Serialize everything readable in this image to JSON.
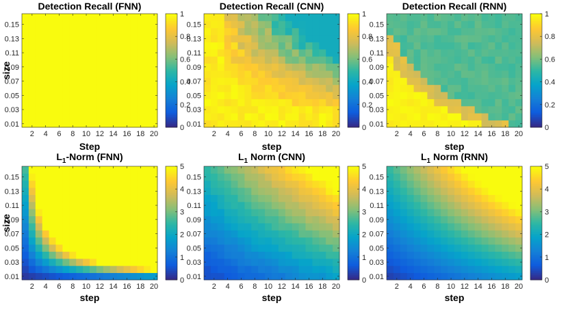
{
  "chart_data": [
    {
      "type": "heatmap",
      "title": "Detection Recall (FNN)",
      "title_main": "Detection Recall (FNN)",
      "title_sub": "",
      "title_rest": "",
      "xlabel": "Step",
      "ylabel": "size",
      "xticks": [
        "2",
        "4",
        "6",
        "8",
        "10",
        "12",
        "14",
        "16",
        "18",
        "20"
      ],
      "yticks": [
        "0.15",
        "0.13",
        "0.11",
        "0.09",
        "0.07",
        "0.05",
        "0.03",
        "0.01"
      ],
      "xlim": [
        1,
        20
      ],
      "ylim": [
        0.005,
        0.155
      ],
      "clim": [
        0,
        1
      ],
      "cbar_ticks": [
        "0",
        "0.2",
        "0.4",
        "0.6",
        "0.8",
        "1"
      ],
      "cbar_tick_values": [
        0,
        0.2,
        0.4,
        0.6,
        0.8,
        1
      ],
      "model": "fnn_recall"
    },
    {
      "type": "heatmap",
      "title": "Detection Recall (CNN)",
      "title_main": "Detection Recall (CNN)",
      "title_sub": "",
      "title_rest": "",
      "xlabel": "step",
      "ylabel": "",
      "xticks": [
        "2",
        "4",
        "6",
        "8",
        "10",
        "12",
        "14",
        "16",
        "18",
        "20"
      ],
      "yticks": [
        "0.15",
        "0.13",
        "0.11",
        "0.09",
        "0.07",
        "0.05",
        "0.03",
        "0.01"
      ],
      "xlim": [
        1,
        20
      ],
      "ylim": [
        0.005,
        0.155
      ],
      "clim": [
        0,
        1
      ],
      "cbar_ticks": [
        "0",
        "0.2",
        "0.4",
        "0.6",
        "0.8",
        "1"
      ],
      "cbar_tick_values": [
        0,
        0.2,
        0.4,
        0.6,
        0.8,
        1
      ],
      "model": "cnn_recall"
    },
    {
      "type": "heatmap",
      "title": "Detection Recall (RNN)",
      "title_main": "Detection Recall (RNN)",
      "title_sub": "",
      "title_rest": "",
      "xlabel": "step",
      "ylabel": "",
      "xticks": [
        "2",
        "4",
        "6",
        "8",
        "10",
        "12",
        "14",
        "16",
        "18",
        "20"
      ],
      "yticks": [
        "0.15",
        "0.13",
        "0.11",
        "0.09",
        "0.07",
        "0.05",
        "0.03",
        "0.01"
      ],
      "xlim": [
        1,
        20
      ],
      "ylim": [
        0.005,
        0.155
      ],
      "clim": [
        0,
        1
      ],
      "cbar_ticks": [
        "0",
        "0.2",
        "0.4",
        "0.6",
        "0.8",
        "1"
      ],
      "cbar_tick_values": [
        0,
        0.2,
        0.4,
        0.6,
        0.8,
        1
      ],
      "model": "rnn_recall"
    },
    {
      "type": "heatmap",
      "title": "L1-Norm (FNN)",
      "title_main": "L",
      "title_sub": "1",
      "title_rest": "-Norm (FNN)",
      "xlabel": "step",
      "ylabel": "size",
      "xticks": [
        "2",
        "4",
        "6",
        "8",
        "10",
        "12",
        "14",
        "16",
        "18",
        "20"
      ],
      "yticks": [
        "0.15",
        "0.13",
        "0.11",
        "0.09",
        "0.07",
        "0.05",
        "0.03",
        "0.01"
      ],
      "xlim": [
        1,
        20
      ],
      "ylim": [
        0.005,
        0.155
      ],
      "clim": [
        0,
        5
      ],
      "cbar_ticks": [
        "0",
        "1",
        "2",
        "3",
        "4",
        "5"
      ],
      "cbar_tick_values": [
        0,
        1,
        2,
        3,
        4,
        5
      ],
      "model": "fnn_l1"
    },
    {
      "type": "heatmap",
      "title": "L1 Norm (CNN)",
      "title_main": "L",
      "title_sub": "1",
      "title_rest": " Norm (CNN)",
      "xlabel": "step",
      "ylabel": "",
      "xticks": [
        "2",
        "4",
        "6",
        "8",
        "10",
        "12",
        "14",
        "16",
        "18",
        "20"
      ],
      "yticks": [
        "0.15",
        "0.13",
        "0.11",
        "0.09",
        "0.07",
        "0.05",
        "0.03",
        "0.01"
      ],
      "xlim": [
        1,
        20
      ],
      "ylim": [
        0.005,
        0.155
      ],
      "clim": [
        0,
        5
      ],
      "cbar_ticks": [
        "0",
        "1",
        "2",
        "3",
        "4",
        "5"
      ],
      "cbar_tick_values": [
        0,
        1,
        2,
        3,
        4,
        5
      ],
      "model": "cnn_l1"
    },
    {
      "type": "heatmap",
      "title": "L1 Norm (RNN)",
      "title_main": "L",
      "title_sub": "1",
      "title_rest": " Norm (RNN)",
      "xlabel": "step",
      "ylabel": "",
      "xticks": [
        "2",
        "4",
        "6",
        "8",
        "10",
        "12",
        "14",
        "16",
        "18",
        "20"
      ],
      "yticks": [
        "0.15",
        "0.13",
        "0.11",
        "0.09",
        "0.07",
        "0.05",
        "0.03",
        "0.01"
      ],
      "xlim": [
        1,
        20
      ],
      "ylim": [
        0.005,
        0.155
      ],
      "clim": [
        0,
        5
      ],
      "cbar_ticks": [
        "0",
        "1",
        "2",
        "3",
        "4",
        "5"
      ],
      "cbar_tick_values": [
        0,
        1,
        2,
        3,
        4,
        5
      ],
      "model": "rnn_l1"
    }
  ],
  "grid": {
    "x_values": "1..20 step 1",
    "y_values": "0.005..0.155 step 0.01"
  },
  "colormap": {
    "name": "parula",
    "stops": [
      "#352a87",
      "#0f5cdd",
      "#1481d6",
      "#06a4ca",
      "#2eb7a4",
      "#87bf77",
      "#d1bb59",
      "#fec832",
      "#f9fb0e"
    ]
  }
}
